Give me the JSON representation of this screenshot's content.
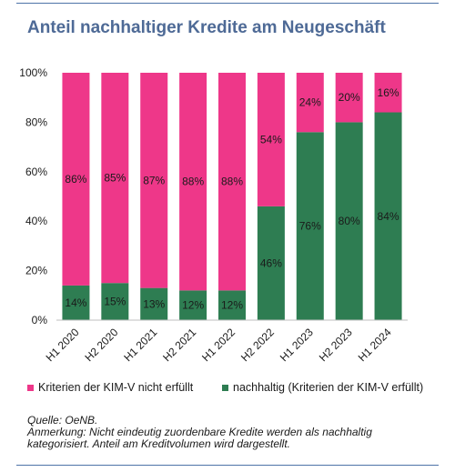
{
  "title": "Anteil nachhaltiger Kredite am Neugeschäft",
  "colors": {
    "nachhaltig": "#2e7d52",
    "nicht_erfuellt": "#ee3789",
    "title": "#4e6a96",
    "rule": "#4d73a8"
  },
  "legend": [
    {
      "label": "Kriterien der KIM-V nicht erfüllt",
      "color": "#ee3789"
    },
    {
      "label": "nachhaltig (Kriterien der KIM-V erfüllt)",
      "color": "#2e7d52"
    }
  ],
  "notes": {
    "source": "Quelle: OeNB.",
    "remark_line1": "Anmerkung: Nicht eindeutig zuordenbare Kredite werden als nachhaltig",
    "remark_line2": "kategorisiert. Anteil am Kreditvolumen wird dargestellt."
  },
  "chart_data": {
    "type": "bar",
    "stacked": true,
    "categories": [
      "H1 2020",
      "H2 2020",
      "H1 2021",
      "H2 2021",
      "H1 2022",
      "H2 2022",
      "H1 2023",
      "H2 2023",
      "H1 2024"
    ],
    "series": [
      {
        "name": "nachhaltig (Kriterien der KIM-V erfüllt)",
        "values": [
          14,
          15,
          13,
          12,
          12,
          46,
          76,
          80,
          84
        ],
        "color": "#2e7d52"
      },
      {
        "name": "Kriterien der KIM-V nicht erfüllt",
        "values": [
          86,
          85,
          87,
          88,
          88,
          54,
          24,
          20,
          16
        ],
        "color": "#ee3789"
      }
    ],
    "yticks": [
      "0%",
      "20%",
      "40%",
      "60%",
      "80%",
      "100%"
    ],
    "ylim": [
      0,
      100
    ],
    "grid": false,
    "legend_position": "bottom"
  }
}
